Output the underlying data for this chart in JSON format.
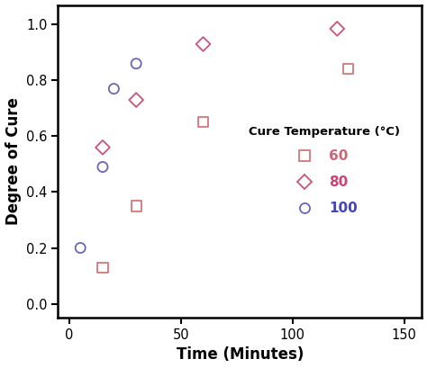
{
  "title": "",
  "xlabel": "Time (Minutes)",
  "ylabel": "Degree of Cure",
  "xlim": [
    -5,
    158
  ],
  "ylim": [
    -0.05,
    1.07
  ],
  "xticks": [
    0,
    50,
    100,
    150
  ],
  "yticks": [
    0.0,
    0.2,
    0.4,
    0.6,
    0.8,
    1.0
  ],
  "series": [
    {
      "label": "60",
      "color": "#d4777a",
      "marker": "s",
      "markersize": 8,
      "x": [
        15,
        30,
        60,
        125
      ],
      "y": [
        0.13,
        0.35,
        0.65,
        0.84
      ]
    },
    {
      "label": "80",
      "color": "#cc5577",
      "marker": "D",
      "markersize": 8,
      "x": [
        15,
        30,
        60,
        120
      ],
      "y": [
        0.56,
        0.73,
        0.93,
        0.985
      ]
    },
    {
      "label": "100",
      "color": "#6666bb",
      "marker": "o",
      "markersize": 8,
      "x": [
        5,
        15,
        20,
        30
      ],
      "y": [
        0.2,
        0.49,
        0.77,
        0.86
      ]
    }
  ],
  "legend_title": "Cure Temperature (°C)",
  "legend_labels": [
    "60",
    "80",
    "100"
  ],
  "legend_colors_text": [
    "#cc6677",
    "#cc4477",
    "#4444bb"
  ],
  "legend_colors_marker": [
    "#d4777a",
    "#cc5577",
    "#6666bb"
  ],
  "legend_markers": [
    "s",
    "D",
    "o"
  ],
  "background_color": "#ffffff",
  "figsize": [
    4.74,
    4.09
  ],
  "dpi": 100
}
